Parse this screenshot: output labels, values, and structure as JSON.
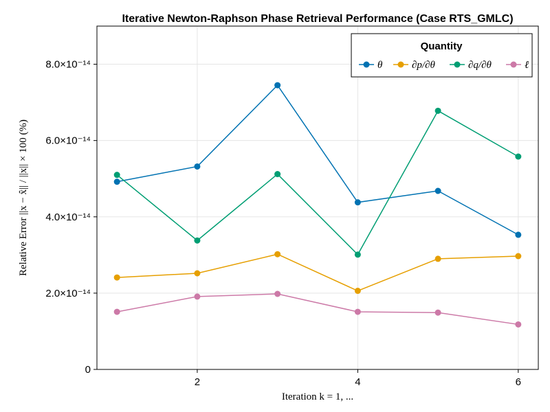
{
  "chart_data": {
    "type": "line",
    "title": "Iterative Newton-Raphson Phase Retrieval Performance (Case RTS_GMLC)",
    "xlabel": "Iteration k = 1, ...",
    "ylabel": "Relative Error ||x − x̂|| / ||x|| × 100 (%)",
    "x": [
      1,
      2,
      3,
      4,
      5,
      6
    ],
    "xticks": [
      2,
      4,
      6
    ],
    "xtick_labels": [
      "2",
      "4",
      "6"
    ],
    "xlim": [
      0.75,
      6.25
    ],
    "ylim": [
      0,
      9e-14
    ],
    "yticks": [
      0,
      2e-14,
      4e-14,
      6e-14,
      8e-14
    ],
    "ytick_labels": [
      "0",
      "2.0×10⁻¹⁴",
      "4.0×10⁻¹⁴",
      "6.0×10⁻¹⁴",
      "8.0×10⁻¹⁴"
    ],
    "grid": true,
    "legend": {
      "title": "Quantity",
      "placement": "top-right",
      "orientation": "horizontal"
    },
    "series": [
      {
        "name": "θ",
        "color": "#0072b2",
        "values": [
          4.92e-14,
          5.32e-14,
          7.45e-14,
          4.38e-14,
          4.68e-14,
          3.53e-14
        ]
      },
      {
        "name": "∂p/∂θ",
        "color": "#e69f00",
        "values": [
          2.41e-14,
          2.52e-14,
          3.02e-14,
          2.06e-14,
          2.9e-14,
          2.97e-14
        ]
      },
      {
        "name": "∂q/∂θ",
        "color": "#009e73",
        "values": [
          5.1e-14,
          3.38e-14,
          5.12e-14,
          3.01e-14,
          6.78e-14,
          5.58e-14
        ]
      },
      {
        "name": "ℓ",
        "color": "#cc79a7",
        "values": [
          1.51e-14,
          1.91e-14,
          1.98e-14,
          1.51e-14,
          1.49e-14,
          1.18e-14
        ]
      }
    ]
  }
}
